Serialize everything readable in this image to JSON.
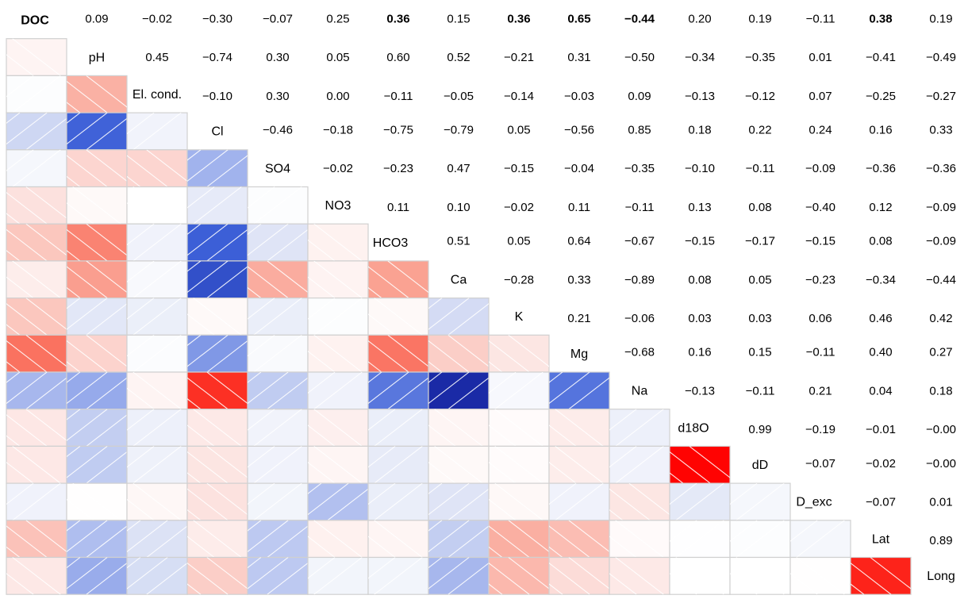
{
  "chart_data": {
    "type": "heatmap",
    "title": "",
    "xlabel": "",
    "ylabel": "",
    "variables": [
      "DOC",
      "pH",
      "El. cond.",
      "Cl",
      "SO4",
      "NO3",
      "HCO3",
      "Ca",
      "K",
      "Mg",
      "Na",
      "d18O",
      "dD",
      "D_exc",
      "Lat",
      "Long"
    ],
    "value_range": [
      -1,
      1
    ],
    "colors": {
      "negative": "#00007f",
      "mid": "#ffffff",
      "positive": "#ff0000",
      "cell_border": "#d0d0d0"
    },
    "lower_triangle": "colored tiles with diagonal hatching (/ for negative, \\ for positive)",
    "upper_triangle": "correlation coefficients printed as text",
    "bold_label": "DOC",
    "bold_values": "DOC row: 0.36 (HCO3), 0.36 (K), 0.65 (Mg), −0.44 (Na), 0.38 (Lat)",
    "matrix": [
      [
        1,
        0.09,
        -0.02,
        -0.3,
        -0.07,
        0.25,
        0.36,
        0.15,
        0.36,
        0.65,
        -0.44,
        0.2,
        0.19,
        -0.11,
        0.38,
        0.19
      ],
      [
        0.09,
        1,
        0.45,
        -0.74,
        0.3,
        0.05,
        0.6,
        0.52,
        -0.21,
        0.31,
        -0.5,
        -0.34,
        -0.35,
        0.01,
        -0.41,
        -0.49
      ],
      [
        -0.02,
        0.45,
        1,
        -0.1,
        0.3,
        0.0,
        -0.11,
        -0.05,
        -0.14,
        -0.03,
        0.09,
        -0.13,
        -0.12,
        0.07,
        -0.25,
        -0.27
      ],
      [
        -0.3,
        -0.74,
        -0.1,
        1,
        -0.46,
        -0.18,
        -0.75,
        -0.79,
        0.05,
        -0.56,
        0.85,
        0.18,
        0.22,
        0.24,
        0.16,
        0.33
      ],
      [
        -0.07,
        0.3,
        0.3,
        -0.46,
        1,
        -0.02,
        -0.23,
        0.47,
        -0.15,
        -0.04,
        -0.35,
        -0.1,
        -0.11,
        -0.09,
        -0.36,
        -0.36
      ],
      [
        0.25,
        0.05,
        0.0,
        -0.18,
        -0.02,
        1,
        0.11,
        0.1,
        -0.02,
        0.11,
        -0.11,
        0.13,
        0.08,
        -0.4,
        0.12,
        -0.09
      ],
      [
        0.36,
        0.6,
        -0.11,
        -0.75,
        -0.23,
        0.11,
        1,
        0.51,
        0.05,
        0.64,
        -0.67,
        -0.15,
        -0.17,
        -0.15,
        0.08,
        -0.09
      ],
      [
        0.15,
        0.52,
        -0.05,
        -0.79,
        0.47,
        0.1,
        0.51,
        1,
        -0.28,
        0.33,
        -0.89,
        0.08,
        0.05,
        -0.23,
        -0.34,
        -0.44
      ],
      [
        0.36,
        -0.21,
        -0.14,
        0.05,
        -0.15,
        -0.02,
        0.05,
        -0.28,
        1,
        0.21,
        -0.06,
        0.03,
        0.03,
        0.06,
        0.46,
        0.42
      ],
      [
        0.65,
        0.31,
        -0.03,
        -0.56,
        -0.04,
        0.11,
        0.64,
        0.33,
        0.21,
        1,
        -0.68,
        0.16,
        0.15,
        -0.11,
        0.4,
        0.27
      ],
      [
        -0.44,
        -0.5,
        0.09,
        0.85,
        -0.35,
        -0.11,
        -0.67,
        -0.89,
        -0.06,
        -0.68,
        1,
        -0.13,
        -0.11,
        0.21,
        0.04,
        0.18
      ],
      [
        0.2,
        -0.34,
        -0.13,
        0.18,
        -0.1,
        0.13,
        -0.15,
        0.08,
        0.03,
        0.16,
        -0.13,
        1,
        0.99,
        -0.19,
        -0.01,
        -0.0
      ],
      [
        0.19,
        -0.35,
        -0.12,
        0.22,
        -0.11,
        0.08,
        -0.17,
        0.05,
        0.03,
        0.15,
        -0.11,
        0.99,
        1,
        -0.07,
        -0.02,
        -0.0
      ],
      [
        -0.11,
        0.01,
        0.07,
        0.24,
        -0.09,
        -0.4,
        -0.15,
        -0.23,
        0.06,
        -0.11,
        0.21,
        -0.19,
        -0.07,
        1,
        -0.07,
        0.01
      ],
      [
        0.38,
        -0.41,
        -0.25,
        0.16,
        -0.36,
        0.12,
        0.08,
        -0.34,
        0.46,
        0.4,
        0.04,
        -0.01,
        -0.02,
        -0.07,
        1,
        0.89
      ],
      [
        0.19,
        -0.49,
        -0.27,
        0.33,
        -0.36,
        -0.09,
        -0.09,
        -0.44,
        0.42,
        0.27,
        0.18,
        -0.0,
        -0.0,
        0.01,
        0.89,
        1
      ]
    ],
    "upper_text": [
      [
        "",
        "0.09",
        "−0.02",
        "−0.30",
        "−0.07",
        "0.25",
        "0.36",
        "0.15",
        "0.36",
        "0.65",
        "−0.44",
        "0.20",
        "0.19",
        "−0.11",
        "0.38",
        "0.19"
      ],
      [
        "",
        "",
        "0.45",
        "−0.74",
        "0.30",
        "0.05",
        "0.60",
        "0.52",
        "−0.21",
        "0.31",
        "−0.50",
        "−0.34",
        "−0.35",
        "0.01",
        "−0.41",
        "−0.49"
      ],
      [
        "",
        "",
        "",
        "−0.10",
        "0.30",
        "0.00",
        "−0.11",
        "−0.05",
        "−0.14",
        "−0.03",
        "0.09",
        "−0.13",
        "−0.12",
        "0.07",
        "−0.25",
        "−0.27"
      ],
      [
        "",
        "",
        "",
        "",
        "−0.46",
        "−0.18",
        "−0.75",
        "−0.79",
        "0.05",
        "−0.56",
        "0.85",
        "0.18",
        "0.22",
        "0.24",
        "0.16",
        "0.33"
      ],
      [
        "",
        "",
        "",
        "",
        "",
        "−0.02",
        "−0.23",
        "0.47",
        "−0.15",
        "−0.04",
        "−0.35",
        "−0.10",
        "−0.11",
        "−0.09",
        "−0.36",
        "−0.36"
      ],
      [
        "",
        "",
        "",
        "",
        "",
        "",
        "0.11",
        "0.10",
        "−0.02",
        "0.11",
        "−0.11",
        "0.13",
        "0.08",
        "−0.40",
        "0.12",
        "−0.09"
      ],
      [
        "",
        "",
        "",
        "",
        "",
        "",
        "",
        "0.51",
        "0.05",
        "0.64",
        "−0.67",
        "−0.15",
        "−0.17",
        "−0.15",
        "0.08",
        "−0.09"
      ],
      [
        "",
        "",
        "",
        "",
        "",
        "",
        "",
        "",
        "−0.28",
        "0.33",
        "−0.89",
        "0.08",
        "0.05",
        "−0.23",
        "−0.34",
        "−0.44"
      ],
      [
        "",
        "",
        "",
        "",
        "",
        "",
        "",
        "",
        "",
        "0.21",
        "−0.06",
        "0.03",
        "0.03",
        "0.06",
        "0.46",
        "0.42"
      ],
      [
        "",
        "",
        "",
        "",
        "",
        "",
        "",
        "",
        "",
        "",
        "−0.68",
        "0.16",
        "0.15",
        "−0.11",
        "0.40",
        "0.27"
      ],
      [
        "",
        "",
        "",
        "",
        "",
        "",
        "",
        "",
        "",
        "",
        "",
        "−0.13",
        "−0.11",
        "0.21",
        "0.04",
        "0.18"
      ],
      [
        "",
        "",
        "",
        "",
        "",
        "",
        "",
        "",
        "",
        "",
        "",
        "",
        "0.99",
        "−0.19",
        "−0.01",
        "−0.00"
      ],
      [
        "",
        "",
        "",
        "",
        "",
        "",
        "",
        "",
        "",
        "",
        "",
        "",
        "",
        "−0.07",
        "−0.02",
        "−0.00"
      ],
      [
        "",
        "",
        "",
        "",
        "",
        "",
        "",
        "",
        "",
        "",
        "",
        "",
        "",
        "",
        "−0.07",
        "0.01"
      ],
      [
        "",
        "",
        "",
        "",
        "",
        "",
        "",
        "",
        "",
        "",
        "",
        "",
        "",
        "",
        "",
        "0.89"
      ],
      [
        "",
        "",
        "",
        "",
        "",
        "",
        "",
        "",
        "",
        "",
        "",
        "",
        "",
        "",
        "",
        ""
      ]
    ]
  }
}
